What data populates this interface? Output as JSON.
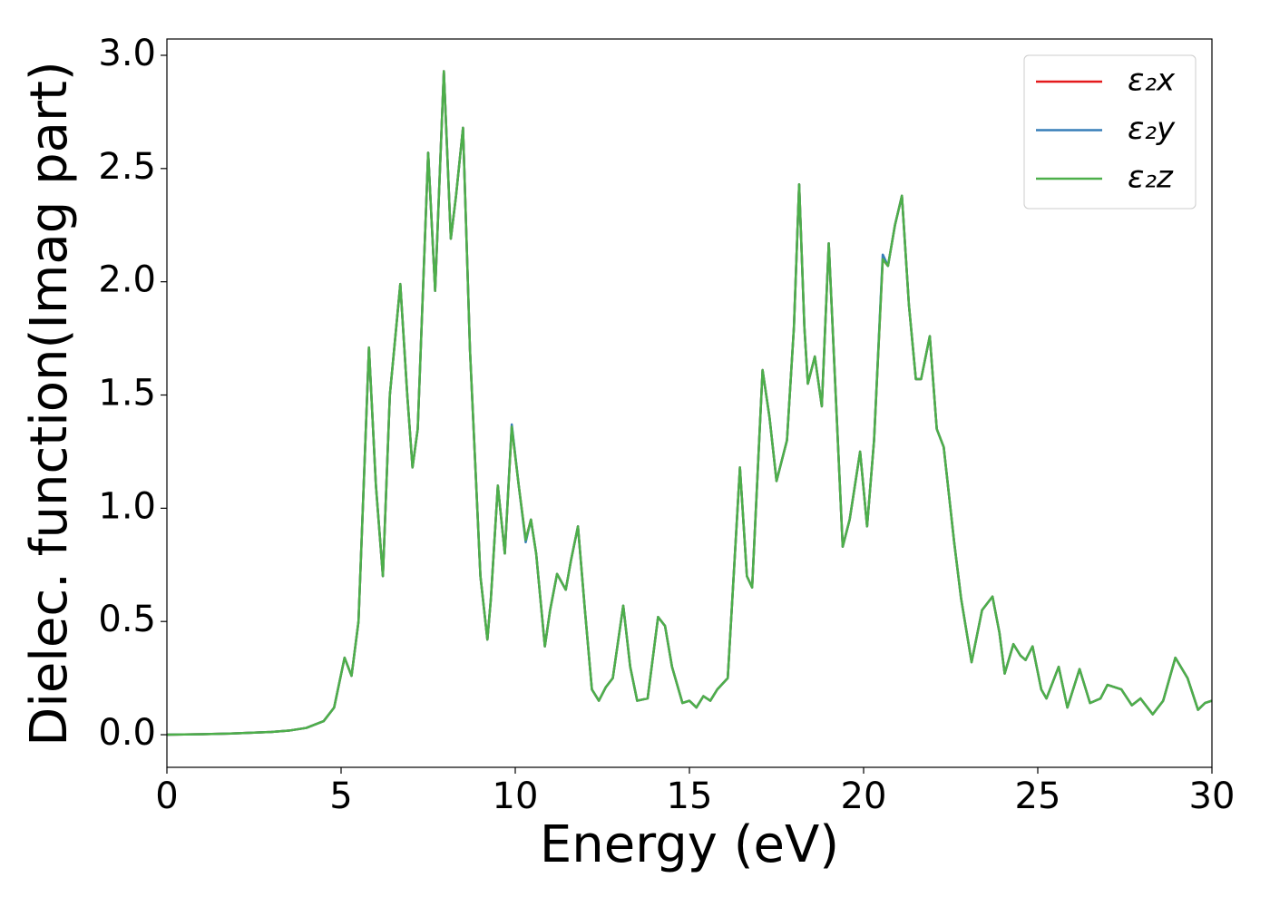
{
  "chart_data": {
    "type": "line",
    "xlabel": "Energy (eV)",
    "ylabel": "Dielec. function(Imag part)",
    "xlim": [
      0,
      30
    ],
    "ylim": [
      -0.144,
      3.072
    ],
    "xticks": [
      0,
      5,
      10,
      15,
      20,
      25,
      30
    ],
    "yticks": [
      {
        "value": 0,
        "label": "0.0"
      },
      0.5,
      {
        "value": 1,
        "label": "1.0"
      },
      1.5,
      {
        "value": 2,
        "label": "2.0"
      },
      2.5,
      {
        "value": 3,
        "label": "3.0"
      }
    ],
    "legend": "upper right",
    "grid": false,
    "x": [
      0,
      1,
      2,
      3,
      3.5,
      4,
      4.5,
      4.8,
      5.1,
      5.3,
      5.5,
      5.8,
      6.0,
      6.2,
      6.4,
      6.7,
      6.9,
      7.05,
      7.2,
      7.5,
      7.7,
      7.95,
      8.15,
      8.3,
      8.5,
      8.7,
      9.0,
      9.2,
      9.3,
      9.5,
      9.7,
      9.9,
      10.1,
      10.3,
      10.45,
      10.6,
      10.85,
      11.0,
      11.2,
      11.45,
      11.6,
      11.8,
      12.0,
      12.2,
      12.4,
      12.6,
      12.8,
      13.1,
      13.3,
      13.5,
      13.8,
      14.1,
      14.3,
      14.5,
      14.8,
      15.0,
      15.2,
      15.4,
      15.6,
      15.8,
      16.1,
      16.45,
      16.65,
      16.8,
      17.1,
      17.3,
      17.5,
      17.8,
      18.0,
      18.15,
      18.3,
      18.4,
      18.6,
      18.8,
      19.0,
      19.2,
      19.4,
      19.6,
      19.9,
      20.1,
      20.3,
      20.55,
      20.7,
      20.9,
      21.1,
      21.3,
      21.5,
      21.65,
      21.9,
      22.1,
      22.3,
      22.6,
      22.8,
      23.1,
      23.4,
      23.7,
      23.9,
      24.05,
      24.3,
      24.5,
      24.65,
      24.85,
      25.1,
      25.25,
      25.6,
      25.85,
      26.2,
      26.5,
      26.8,
      27.0,
      27.4,
      27.7,
      27.95,
      28.3,
      28.6,
      28.95,
      29.3,
      29.6,
      29.8,
      30.0
    ],
    "series": [
      {
        "name": "ε₂x",
        "color": "#e41a1c",
        "values": [
          0,
          0.002,
          0.006,
          0.012,
          0.018,
          0.03,
          0.06,
          0.12,
          0.34,
          0.26,
          0.5,
          1.71,
          1.1,
          0.7,
          1.5,
          1.99,
          1.5,
          1.18,
          1.35,
          2.57,
          1.96,
          2.93,
          2.19,
          2.38,
          2.68,
          1.7,
          0.7,
          0.42,
          0.6,
          1.1,
          0.8,
          1.36,
          1.1,
          0.86,
          0.95,
          0.8,
          0.39,
          0.55,
          0.71,
          0.64,
          0.77,
          0.92,
          0.55,
          0.2,
          0.15,
          0.21,
          0.25,
          0.57,
          0.3,
          0.15,
          0.16,
          0.52,
          0.48,
          0.3,
          0.14,
          0.15,
          0.12,
          0.17,
          0.15,
          0.2,
          0.25,
          1.18,
          0.7,
          0.65,
          1.61,
          1.4,
          1.12,
          1.3,
          1.8,
          2.43,
          1.8,
          1.55,
          1.67,
          1.45,
          2.17,
          1.5,
          0.83,
          0.95,
          1.25,
          0.92,
          1.3,
          2.1,
          2.07,
          2.25,
          2.38,
          1.9,
          1.57,
          1.57,
          1.76,
          1.35,
          1.27,
          0.85,
          0.6,
          0.32,
          0.55,
          0.61,
          0.45,
          0.27,
          0.4,
          0.35,
          0.33,
          0.39,
          0.2,
          0.16,
          0.3,
          0.12,
          0.29,
          0.14,
          0.16,
          0.22,
          0.2,
          0.13,
          0.16,
          0.09,
          0.15,
          0.34,
          0.25,
          0.11,
          0.14,
          0.15
        ]
      },
      {
        "name": "ε₂y",
        "color": "#377eb8",
        "values": [
          0,
          0.002,
          0.006,
          0.012,
          0.018,
          0.03,
          0.06,
          0.12,
          0.34,
          0.26,
          0.5,
          1.71,
          1.1,
          0.7,
          1.5,
          1.99,
          1.5,
          1.18,
          1.35,
          2.57,
          1.96,
          2.93,
          2.19,
          2.38,
          2.68,
          1.7,
          0.7,
          0.42,
          0.6,
          1.1,
          0.8,
          1.37,
          1.1,
          0.85,
          0.95,
          0.8,
          0.39,
          0.55,
          0.71,
          0.64,
          0.77,
          0.92,
          0.55,
          0.2,
          0.15,
          0.21,
          0.25,
          0.57,
          0.3,
          0.15,
          0.16,
          0.52,
          0.48,
          0.3,
          0.14,
          0.15,
          0.12,
          0.17,
          0.15,
          0.2,
          0.25,
          1.18,
          0.7,
          0.65,
          1.61,
          1.4,
          1.12,
          1.3,
          1.8,
          2.43,
          1.8,
          1.55,
          1.67,
          1.45,
          2.17,
          1.5,
          0.83,
          0.95,
          1.25,
          0.92,
          1.3,
          2.12,
          2.07,
          2.25,
          2.38,
          1.9,
          1.57,
          1.57,
          1.76,
          1.35,
          1.27,
          0.85,
          0.6,
          0.32,
          0.55,
          0.61,
          0.45,
          0.27,
          0.4,
          0.35,
          0.33,
          0.39,
          0.2,
          0.16,
          0.3,
          0.12,
          0.29,
          0.14,
          0.16,
          0.22,
          0.2,
          0.13,
          0.16,
          0.09,
          0.15,
          0.34,
          0.25,
          0.11,
          0.14,
          0.15
        ]
      },
      {
        "name": "ε₂z",
        "color": "#4daf4a",
        "values": [
          0,
          0.002,
          0.006,
          0.012,
          0.018,
          0.03,
          0.06,
          0.12,
          0.34,
          0.26,
          0.5,
          1.71,
          1.1,
          0.7,
          1.5,
          1.99,
          1.5,
          1.18,
          1.35,
          2.57,
          1.96,
          2.93,
          2.19,
          2.38,
          2.68,
          1.7,
          0.7,
          0.42,
          0.6,
          1.1,
          0.8,
          1.36,
          1.1,
          0.86,
          0.95,
          0.8,
          0.39,
          0.55,
          0.71,
          0.64,
          0.77,
          0.92,
          0.55,
          0.2,
          0.15,
          0.21,
          0.25,
          0.57,
          0.3,
          0.15,
          0.16,
          0.52,
          0.48,
          0.3,
          0.14,
          0.15,
          0.12,
          0.17,
          0.15,
          0.2,
          0.25,
          1.18,
          0.7,
          0.65,
          1.61,
          1.4,
          1.12,
          1.3,
          1.8,
          2.43,
          1.8,
          1.55,
          1.67,
          1.45,
          2.17,
          1.5,
          0.83,
          0.95,
          1.25,
          0.92,
          1.3,
          2.1,
          2.07,
          2.25,
          2.38,
          1.9,
          1.57,
          1.57,
          1.76,
          1.35,
          1.27,
          0.85,
          0.6,
          0.32,
          0.55,
          0.61,
          0.45,
          0.27,
          0.4,
          0.35,
          0.33,
          0.39,
          0.2,
          0.16,
          0.3,
          0.12,
          0.29,
          0.14,
          0.16,
          0.22,
          0.2,
          0.13,
          0.16,
          0.09,
          0.15,
          0.34,
          0.25,
          0.11,
          0.14,
          0.15
        ]
      }
    ]
  }
}
